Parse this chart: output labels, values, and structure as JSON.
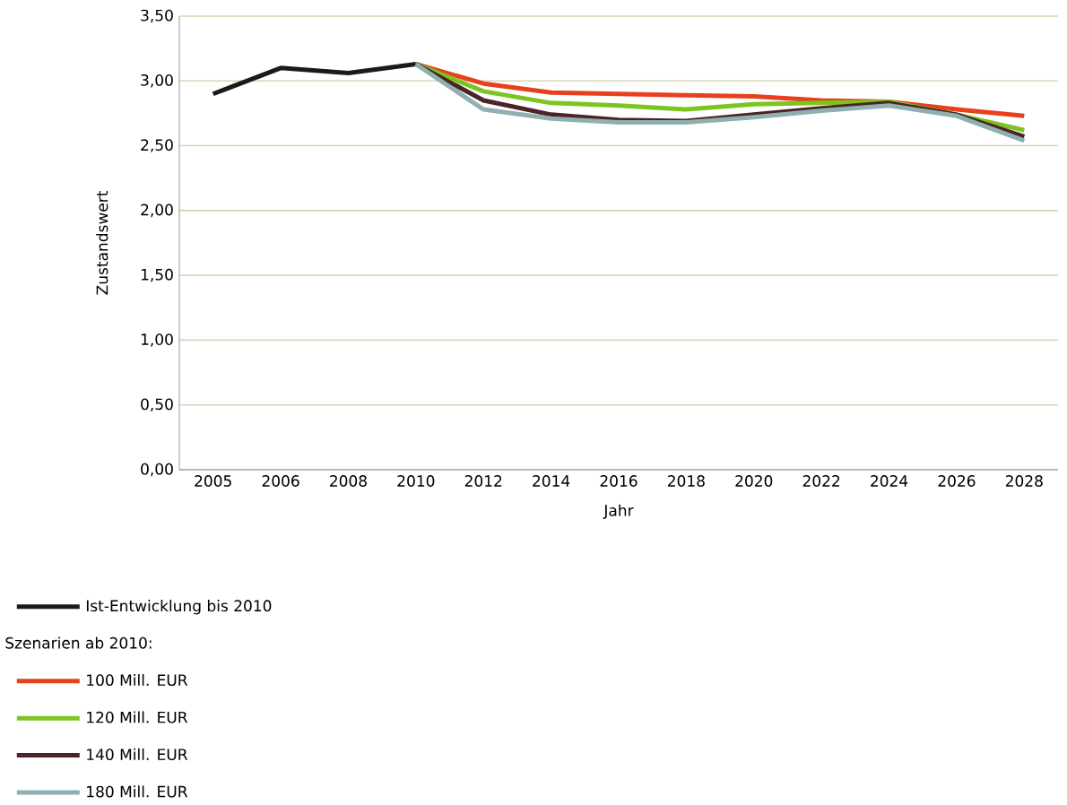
{
  "chart_data": {
    "type": "line",
    "xlabel": "Jahr",
    "ylabel": "Zustandswert",
    "legend_title": "Szenarien ab 2010:",
    "categories": [
      "2005",
      "2006",
      "2008",
      "2010",
      "2012",
      "2014",
      "2016",
      "2018",
      "2020",
      "2022",
      "2024",
      "2026",
      "2028"
    ],
    "series": [
      {
        "name": "Ist-Entwicklung bis 2010",
        "color": "#1a1a1a",
        "values": [
          2.9,
          3.1,
          3.06,
          3.13,
          null,
          null,
          null,
          null,
          null,
          null,
          null,
          null,
          null
        ]
      },
      {
        "name": "100 Mill. EUR",
        "color": "#e8401c",
        "values": [
          null,
          null,
          null,
          3.13,
          2.98,
          2.91,
          2.9,
          2.89,
          2.88,
          2.85,
          2.84,
          2.78,
          2.73
        ]
      },
      {
        "name": "120 Mill. EUR",
        "color": "#7cc520",
        "values": [
          null,
          null,
          null,
          3.13,
          2.92,
          2.83,
          2.81,
          2.78,
          2.82,
          2.83,
          2.84,
          2.74,
          2.62
        ]
      },
      {
        "name": "140 Mill. EUR",
        "color": "#4a2426",
        "values": [
          null,
          null,
          null,
          3.13,
          2.85,
          2.74,
          2.7,
          2.69,
          2.74,
          2.79,
          2.83,
          2.74,
          2.57
        ]
      },
      {
        "name": "180 Mill. EUR",
        "color": "#8fb0b0",
        "values": [
          null,
          null,
          null,
          3.13,
          2.78,
          2.71,
          2.68,
          2.68,
          2.72,
          2.77,
          2.81,
          2.73,
          2.54
        ]
      }
    ],
    "ylim": [
      0,
      3.5
    ],
    "yticks": [
      {
        "value": 0,
        "label": "0,00"
      },
      {
        "value": 0.5,
        "label": "0,50"
      },
      {
        "value": 1,
        "label": "1,00"
      },
      {
        "value": 1.5,
        "label": "1,50"
      },
      {
        "value": 2,
        "label": "2,00"
      },
      {
        "value": 2.5,
        "label": "2,50"
      },
      {
        "value": 3,
        "label": "3,00"
      },
      {
        "value": 3.5,
        "label": "3,50"
      }
    ],
    "grid": "y",
    "legend": "bottom left",
    "marker": "none",
    "line_style": "solid"
  }
}
